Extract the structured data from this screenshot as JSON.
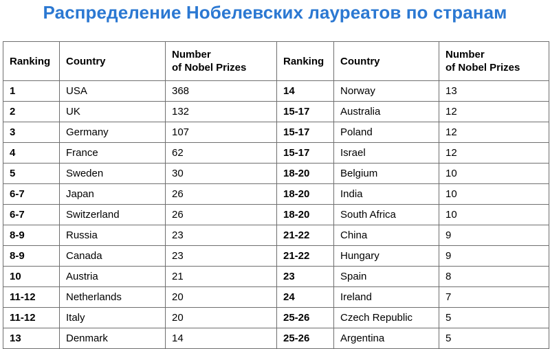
{
  "title": "Распределение Нобелевских лауреатов по странам",
  "headers": {
    "ranking": "Ranking",
    "country": "Country",
    "number_line1": "Number",
    "number_line2": "of Nobel Prizes"
  },
  "rows": [
    {
      "left": {
        "rank": "1",
        "country": "USA",
        "prizes": "368"
      },
      "right": {
        "rank": "14",
        "country": "Norway",
        "prizes": "13"
      }
    },
    {
      "left": {
        "rank": "2",
        "country": "UK",
        "prizes": "132"
      },
      "right": {
        "rank": "15-17",
        "country": "Australia",
        "prizes": "12"
      }
    },
    {
      "left": {
        "rank": "3",
        "country": "Germany",
        "prizes": "107"
      },
      "right": {
        "rank": "15-17",
        "country": "Poland",
        "prizes": "12"
      }
    },
    {
      "left": {
        "rank": "4",
        "country": "France",
        "prizes": "62"
      },
      "right": {
        "rank": "15-17",
        "country": "Israel",
        "prizes": "12"
      }
    },
    {
      "left": {
        "rank": "5",
        "country": "Sweden",
        "prizes": "30"
      },
      "right": {
        "rank": "18-20",
        "country": "Belgium",
        "prizes": "10"
      }
    },
    {
      "left": {
        "rank": "6-7",
        "country": "Japan",
        "prizes": "26"
      },
      "right": {
        "rank": "18-20",
        "country": "India",
        "prizes": "10"
      }
    },
    {
      "left": {
        "rank": "6-7",
        "country": "Switzerland",
        "prizes": "26"
      },
      "right": {
        "rank": "18-20",
        "country": "South Africa",
        "prizes": "10"
      }
    },
    {
      "left": {
        "rank": "8-9",
        "country": "Russia",
        "prizes": "23"
      },
      "right": {
        "rank": "21-22",
        "country": "China",
        "prizes": "9"
      }
    },
    {
      "left": {
        "rank": "8-9",
        "country": "Canada",
        "prizes": "23"
      },
      "right": {
        "rank": "21-22",
        "country": "Hungary",
        "prizes": "9"
      }
    },
    {
      "left": {
        "rank": "10",
        "country": "Austria",
        "prizes": "21"
      },
      "right": {
        "rank": "23",
        "country": "Spain",
        "prizes": "8"
      }
    },
    {
      "left": {
        "rank": "11-12",
        "country": "Netherlands",
        "prizes": "20"
      },
      "right": {
        "rank": "24",
        "country": "Ireland",
        "prizes": "7"
      }
    },
    {
      "left": {
        "rank": "11-12",
        "country": "Italy",
        "prizes": "20"
      },
      "right": {
        "rank": "25-26",
        "country": "Czech Republic",
        "prizes": "5"
      }
    },
    {
      "left": {
        "rank": "13",
        "country": "Denmark",
        "prizes": "14"
      },
      "right": {
        "rank": "25-26",
        "country": "Argentina",
        "prizes": "5"
      }
    }
  ]
}
